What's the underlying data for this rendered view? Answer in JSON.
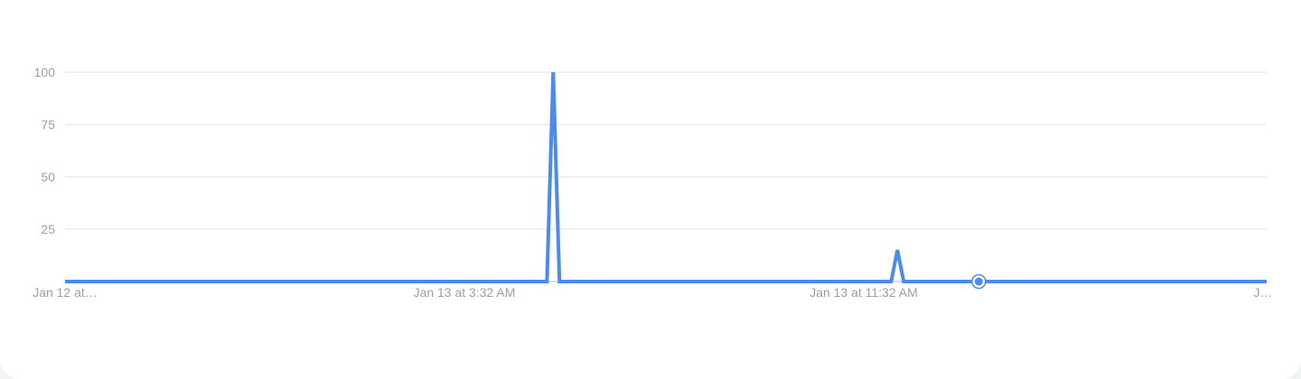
{
  "chart_data": {
    "type": "line",
    "title": "",
    "xlabel": "",
    "ylabel": "",
    "ylim": [
      0,
      100
    ],
    "yticks": [
      25,
      50,
      75,
      100
    ],
    "grid": true,
    "x_tick_labels": [
      "Jan 12 at…",
      "Jan 13 at 3:32 AM",
      "Jan 13 at 11:32 AM",
      "J…"
    ],
    "series": [
      {
        "color": "#4a8af4",
        "values": [
          0,
          0,
          0,
          0,
          0,
          0,
          0,
          0,
          0,
          0,
          0,
          0,
          0,
          0,
          0,
          0,
          0,
          0,
          0,
          0,
          0,
          0,
          0,
          0,
          0,
          0,
          0,
          0,
          0,
          0,
          0,
          0,
          0,
          0,
          0,
          0,
          0,
          0,
          0,
          0,
          0,
          0,
          0,
          0,
          0,
          0,
          0,
          0,
          0,
          0,
          0,
          0,
          0,
          0,
          0,
          0,
          0,
          0,
          0,
          0,
          0,
          0,
          0,
          0,
          0,
          0,
          0,
          0,
          0,
          0,
          0,
          0,
          0,
          0,
          0,
          0,
          0,
          0,
          100,
          0,
          0,
          0,
          0,
          0,
          0,
          0,
          0,
          0,
          0,
          0,
          0,
          0,
          0,
          0,
          0,
          0,
          0,
          0,
          0,
          0,
          0,
          0,
          0,
          0,
          0,
          0,
          0,
          0,
          0,
          0,
          0,
          0,
          0,
          0,
          0,
          0,
          0,
          0,
          0,
          0,
          0,
          0,
          0,
          0,
          0,
          0,
          0,
          0,
          0,
          0,
          0,
          0,
          0,
          15,
          0,
          0,
          0,
          0,
          0,
          0,
          0,
          0,
          0,
          0,
          0,
          0,
          0,
          0,
          0,
          0,
          0,
          0,
          0,
          0,
          0,
          0,
          0,
          0,
          0,
          0,
          0,
          0,
          0,
          0,
          0,
          0,
          0,
          0,
          0,
          0,
          0,
          0,
          0,
          0,
          0,
          0,
          0,
          0,
          0,
          0,
          0,
          0,
          0,
          0,
          0,
          0,
          0,
          0,
          0,
          0,
          0,
          0,
          0
        ]
      }
    ],
    "marker_index": 146
  }
}
